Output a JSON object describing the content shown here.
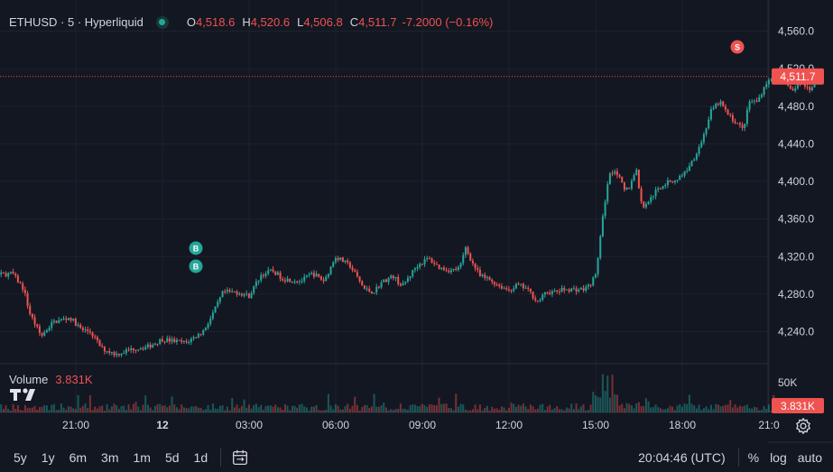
{
  "legend": {
    "symbol": "ETHUSD · 5 · Hyperliquid",
    "open_key": "O",
    "open": "4,518.6",
    "high_key": "H",
    "high": "4,520.6",
    "low_key": "L",
    "low": "4,506.8",
    "close_key": "C",
    "close": "4,511.7",
    "change": "-7.2000 (−0.16%)"
  },
  "volume": {
    "label": "Volume",
    "value": "3.831K",
    "axis_label": "50K"
  },
  "last_price": "4,511.7",
  "trade_markers": {
    "buy": "B",
    "sell": "S"
  },
  "toolbar": {
    "timeframes": [
      "5y",
      "1y",
      "6m",
      "3m",
      "1m",
      "5d",
      "1d"
    ],
    "clock": "20:04:46 (UTC)",
    "options": [
      "%",
      "log",
      "auto"
    ]
  },
  "colors": {
    "up": "#26a69a",
    "down": "#ef5350",
    "background": "#131722",
    "grid": "#1e222d",
    "text": "#d1d4dc"
  },
  "chart_data": {
    "type": "candlestick",
    "interval": "5m",
    "y_ticks": [
      "4,560.0",
      "4,520.0",
      "4,480.0",
      "4,440.0",
      "4,400.0",
      "4,360.0",
      "4,320.0",
      "4,280.0",
      "4,240.0"
    ],
    "y_tick_values": [
      4560,
      4520,
      4480,
      4440,
      4400,
      4360,
      4320,
      4280,
      4240
    ],
    "x_ticks": [
      "21:00",
      "12",
      "03:00",
      "06:00",
      "09:00",
      "12:00",
      "15:00",
      "18:00",
      "21:0"
    ],
    "x_tick_hours": [
      21,
      24,
      27,
      30,
      33,
      36,
      39,
      42,
      45
    ],
    "x_start_hours": 16.83,
    "x_end_hours": 44.33,
    "close_keypoints": [
      [
        16.83,
        4300
      ],
      [
        17.3,
        4308
      ],
      [
        17.6,
        4298
      ],
      [
        18.2,
        4300
      ],
      [
        18.8,
        4302
      ],
      [
        19.2,
        4285
      ],
      [
        19.4,
        4260
      ],
      [
        19.8,
        4235
      ],
      [
        20.2,
        4250
      ],
      [
        20.8,
        4255
      ],
      [
        21.2,
        4242
      ],
      [
        21.5,
        4240
      ],
      [
        21.9,
        4222
      ],
      [
        22.4,
        4216
      ],
      [
        23.0,
        4222
      ],
      [
        23.5,
        4224
      ],
      [
        24.0,
        4232
      ],
      [
        24.8,
        4228
      ],
      [
        25.4,
        4240
      ],
      [
        25.7,
        4256
      ],
      [
        26.1,
        4282
      ],
      [
        26.6,
        4282
      ],
      [
        27.0,
        4278
      ],
      [
        27.4,
        4300
      ],
      [
        27.8,
        4305
      ],
      [
        28.2,
        4296
      ],
      [
        28.8,
        4294
      ],
      [
        29.2,
        4302
      ],
      [
        29.6,
        4294
      ],
      [
        30.0,
        4320
      ],
      [
        30.5,
        4310
      ],
      [
        31.0,
        4285
      ],
      [
        31.3,
        4282
      ],
      [
        31.6,
        4293
      ],
      [
        32.0,
        4299
      ],
      [
        32.3,
        4288
      ],
      [
        32.8,
        4310
      ],
      [
        33.2,
        4318
      ],
      [
        33.6,
        4308
      ],
      [
        34.0,
        4305
      ],
      [
        34.3,
        4308
      ],
      [
        34.5,
        4330
      ],
      [
        34.7,
        4315
      ],
      [
        35.0,
        4299
      ],
      [
        35.3,
        4296
      ],
      [
        35.6,
        4290
      ],
      [
        36.0,
        4284
      ],
      [
        36.3,
        4290
      ],
      [
        36.6,
        4286
      ],
      [
        37.0,
        4272
      ],
      [
        37.3,
        4282
      ],
      [
        37.6,
        4282
      ],
      [
        37.9,
        4285
      ],
      [
        38.2,
        4285
      ],
      [
        38.6,
        4285
      ],
      [
        38.8,
        4290
      ],
      [
        39.0,
        4300
      ],
      [
        39.2,
        4350
      ],
      [
        39.35,
        4385
      ],
      [
        39.5,
        4410
      ],
      [
        39.7,
        4412
      ],
      [
        40.0,
        4390
      ],
      [
        40.2,
        4395
      ],
      [
        40.4,
        4415
      ],
      [
        40.6,
        4372
      ],
      [
        40.8,
        4378
      ],
      [
        41.1,
        4390
      ],
      [
        41.4,
        4398
      ],
      [
        41.8,
        4402
      ],
      [
        42.1,
        4410
      ],
      [
        42.4,
        4425
      ],
      [
        42.7,
        4445
      ],
      [
        43.0,
        4475
      ],
      [
        43.3,
        4485
      ],
      [
        43.6,
        4470
      ],
      [
        43.9,
        4462
      ],
      [
        44.1,
        4455
      ],
      [
        44.33,
        4485
      ],
      [
        44.6,
        4485
      ],
      [
        44.9,
        4505
      ],
      [
        45.2,
        4510
      ],
      [
        45.5,
        4514
      ],
      [
        45.8,
        4495
      ],
      [
        46.1,
        4506
      ],
      [
        46.4,
        4498
      ],
      [
        46.7,
        4512
      ]
    ]
  }
}
